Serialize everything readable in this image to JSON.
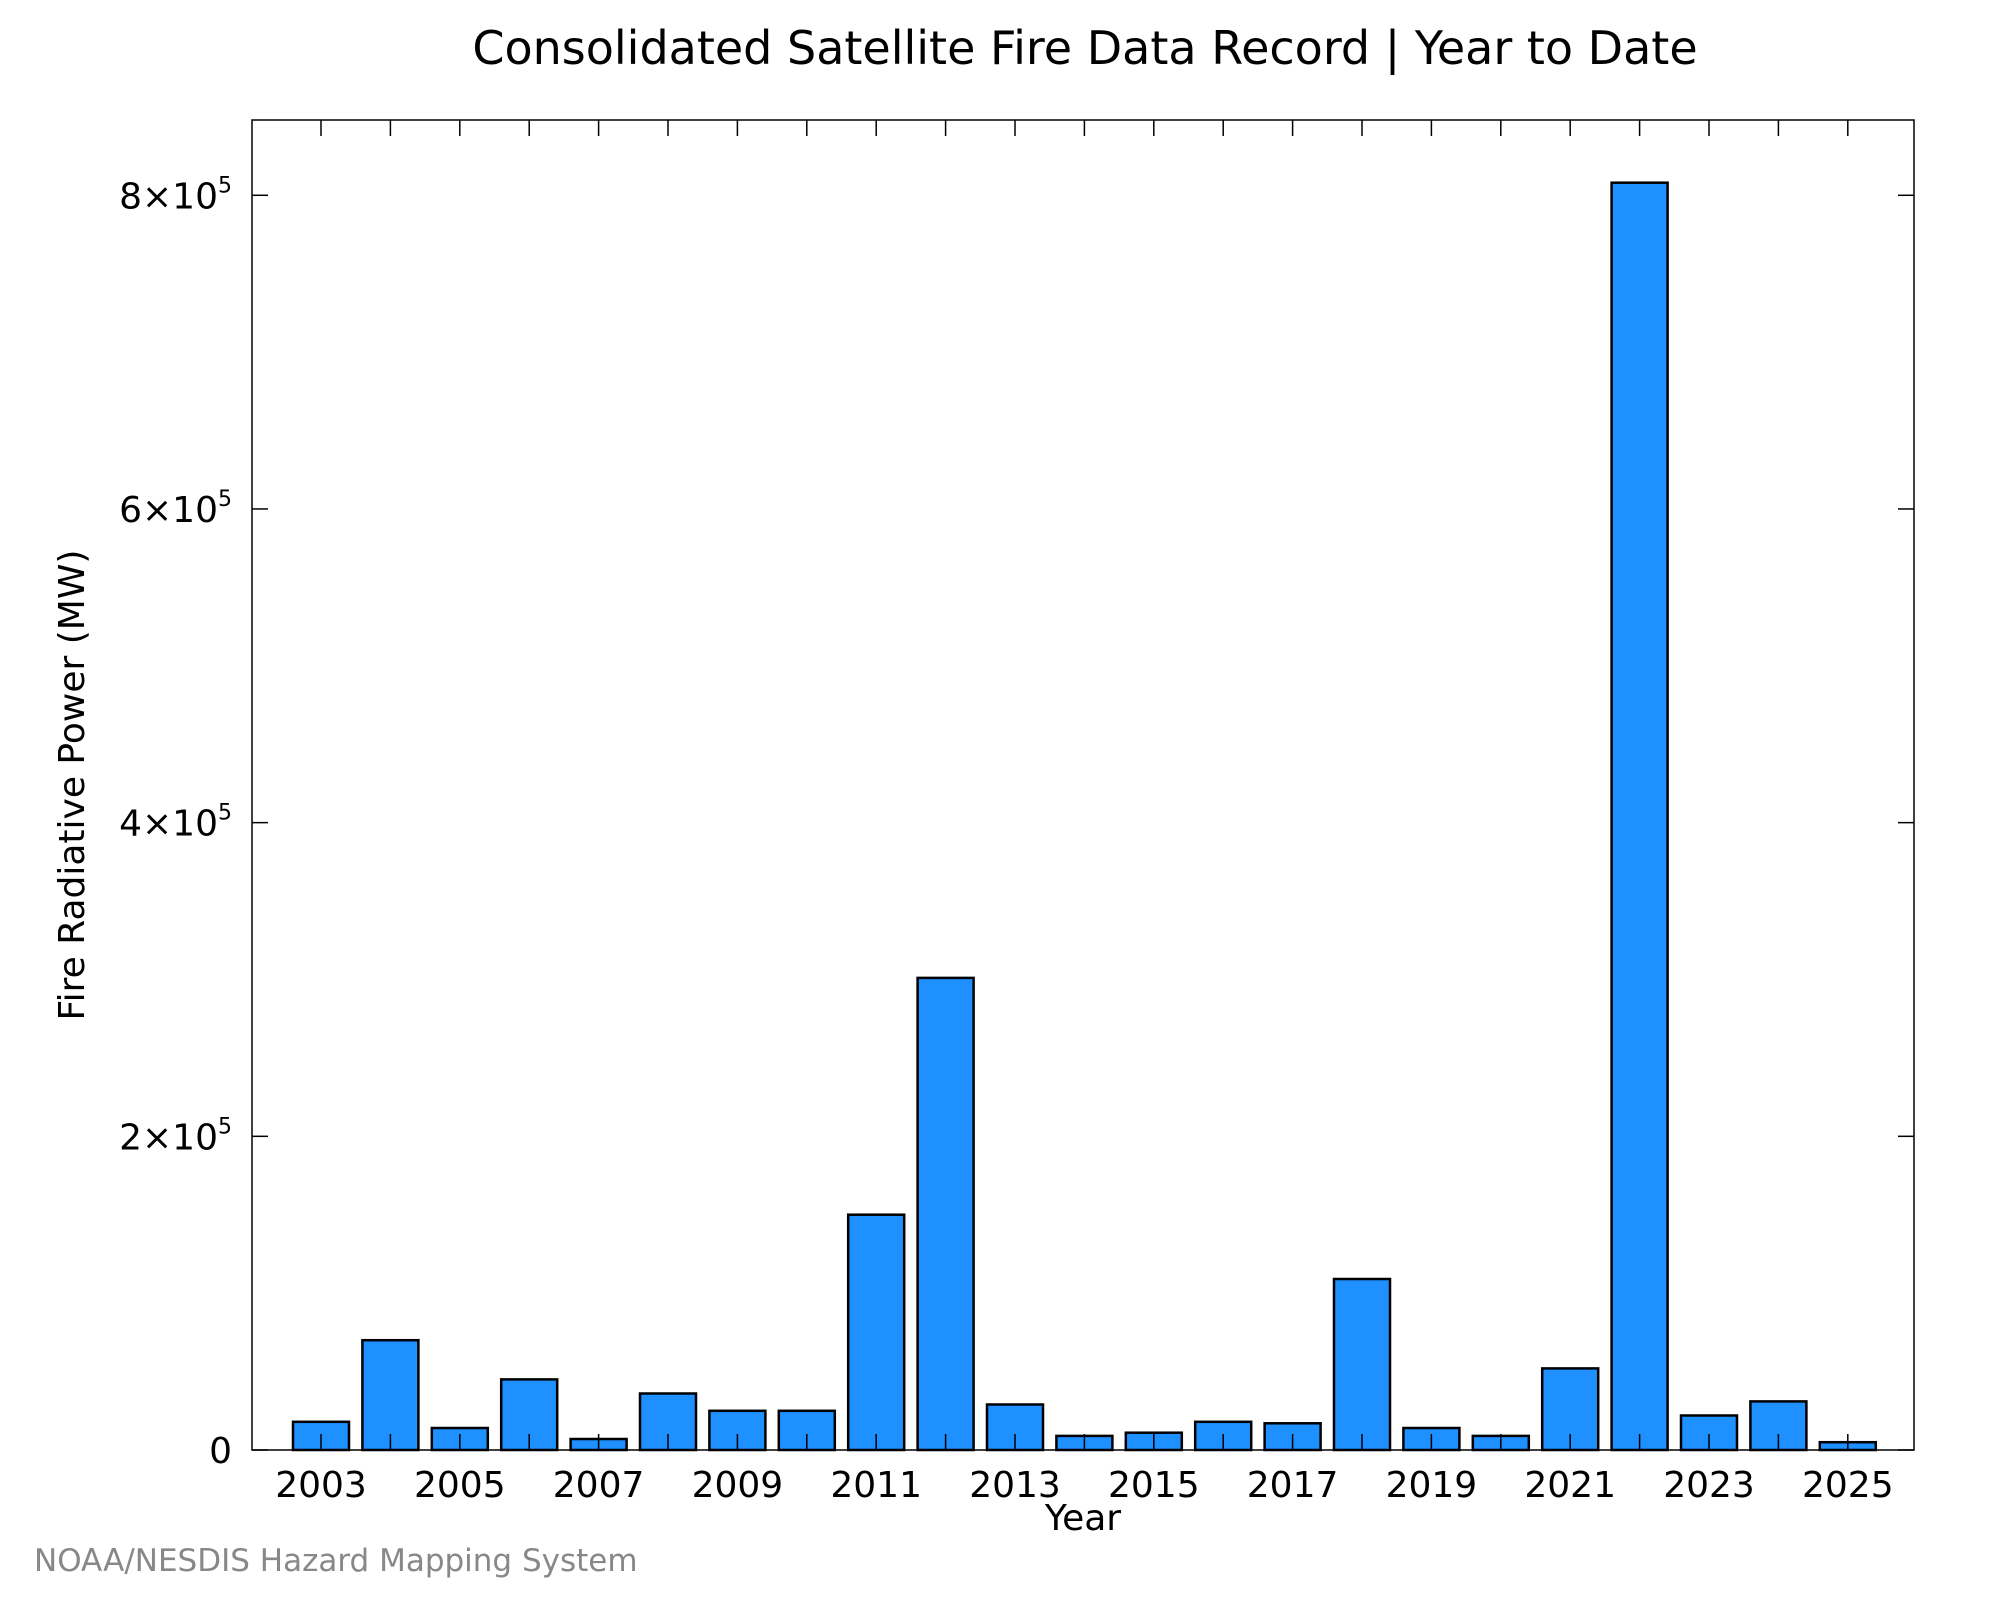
{
  "chart_data": {
    "type": "bar",
    "title": "Consolidated Satellite Fire Data Record | Year to Date",
    "xlabel": "Year",
    "ylabel": "Fire Radiative Power (MW)",
    "categories": [
      "2003",
      "2004",
      "2005",
      "2006",
      "2007",
      "2008",
      "2009",
      "2010",
      "2011",
      "2012",
      "2013",
      "2014",
      "2015",
      "2016",
      "2017",
      "2018",
      "2019",
      "2020",
      "2021",
      "2022",
      "2023",
      "2024",
      "2025"
    ],
    "values": [
      18000,
      70000,
      14000,
      45000,
      7000,
      36000,
      25000,
      25000,
      150000,
      301000,
      29000,
      9000,
      11000,
      18000,
      17000,
      109000,
      14000,
      9000,
      52000,
      808000,
      22000,
      31000,
      5000
    ],
    "ylim": [
      0,
      848000.0
    ],
    "yticks": [
      {
        "value": 0,
        "mantissa": "0",
        "exponent": ""
      },
      {
        "value": 200000,
        "mantissa": "2×10",
        "exponent": "5"
      },
      {
        "value": 400000,
        "mantissa": "4×10",
        "exponent": "5"
      },
      {
        "value": 600000,
        "mantissa": "6×10",
        "exponent": "5"
      },
      {
        "value": 800000,
        "mantissa": "8×10",
        "exponent": "5"
      }
    ],
    "xtick_labels": [
      "2003",
      "2005",
      "2007",
      "2009",
      "2011",
      "2013",
      "2015",
      "2017",
      "2019",
      "2021",
      "2023",
      "2025"
    ],
    "bar_color": "#1e90ff",
    "bar_edge_color": "#000000",
    "grid": false,
    "legend": "none",
    "credit": "NOAA/NESDIS Hazard Mapping System"
  }
}
